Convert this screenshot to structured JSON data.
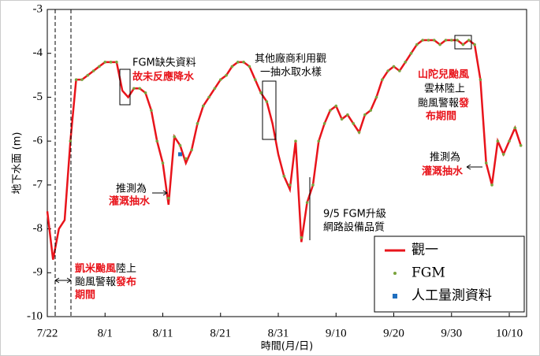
{
  "chart_data": {
    "type": "line",
    "x_label": "時間(月/日)",
    "y_label": "地下水面 (m)",
    "x": [
      "7/22",
      "7/23",
      "7/24",
      "7/25",
      "7/26",
      "7/27",
      "7/28",
      "7/29",
      "7/30",
      "7/31",
      "8/1",
      "8/2",
      "8/3",
      "8/4",
      "8/5",
      "8/6",
      "8/7",
      "8/8",
      "8/9",
      "8/10",
      "8/11",
      "8/12",
      "8/13",
      "8/14",
      "8/15",
      "8/16",
      "8/17",
      "8/18",
      "8/19",
      "8/20",
      "8/21",
      "8/22",
      "8/23",
      "8/24",
      "8/25",
      "8/26",
      "8/27",
      "8/28",
      "8/29",
      "8/30",
      "8/31",
      "9/1",
      "9/2",
      "9/3",
      "9/4",
      "9/5",
      "9/6",
      "9/7",
      "9/8",
      "9/9",
      "9/10",
      "9/11",
      "9/12",
      "9/13",
      "9/14",
      "9/15",
      "9/16",
      "9/17",
      "9/18",
      "9/19",
      "9/20",
      "9/21",
      "9/22",
      "9/23",
      "9/24",
      "9/25",
      "9/26",
      "9/27",
      "9/28",
      "9/29",
      "9/30",
      "10/1",
      "10/2",
      "10/3",
      "10/4",
      "10/5",
      "10/6",
      "10/7",
      "10/8",
      "10/9",
      "10/10",
      "10/11",
      "10/12"
    ],
    "series": [
      {
        "name": "觀一",
        "color": "#e8141b",
        "marker": "line",
        "values": [
          -7.6,
          -8.7,
          -8.0,
          -7.8,
          -6.0,
          -4.6,
          -4.6,
          -4.5,
          -4.4,
          -4.3,
          -4.2,
          -4.2,
          -4.2,
          -4.85,
          -5.0,
          -4.8,
          -4.8,
          -4.9,
          -5.3,
          -6.0,
          -6.5,
          -7.45,
          -5.9,
          -6.1,
          -6.5,
          -6.2,
          -5.6,
          -5.2,
          -5.0,
          -4.8,
          -4.6,
          -4.5,
          -4.3,
          -4.2,
          -4.2,
          -4.3,
          -4.6,
          -4.9,
          -5.1,
          -5.6,
          -6.3,
          -6.8,
          -7.1,
          -6.0,
          -8.3,
          -7.4,
          -7.0,
          -6.0,
          -5.6,
          -5.3,
          -5.2,
          -5.5,
          -5.4,
          -5.6,
          -5.8,
          -5.4,
          -5.3,
          -5.0,
          -4.6,
          -4.4,
          -4.3,
          -4.4,
          -4.2,
          -4.0,
          -3.8,
          -3.7,
          -3.7,
          -3.7,
          -3.8,
          -3.7,
          -3.7,
          -3.7,
          -3.8,
          -3.7,
          -3.8,
          -4.6,
          -6.5,
          -7.0,
          -6.0,
          -6.3,
          -6.0,
          -5.7,
          -6.1
        ]
      },
      {
        "name": "FGM",
        "color": "#7aa33c",
        "marker": "dot",
        "values": [
          null,
          null,
          null,
          null,
          -6.0,
          -4.6,
          -4.6,
          -4.5,
          -4.4,
          -4.3,
          -4.2,
          -4.2,
          -4.2,
          null,
          null,
          -4.8,
          -4.8,
          -4.9,
          -5.3,
          -6.0,
          -6.5,
          -7.3,
          -5.9,
          -6.1,
          -6.4,
          -6.2,
          -5.6,
          -5.2,
          -5.0,
          -4.8,
          -4.6,
          -4.5,
          -4.3,
          -4.2,
          -4.2,
          -4.3,
          -4.6,
          -4.9,
          -5.1,
          null,
          null,
          -6.8,
          -7.0,
          -6.0,
          -8.2,
          -7.4,
          -7.0,
          -6.0,
          -5.6,
          -5.3,
          -5.2,
          -5.5,
          -5.4,
          -5.6,
          -5.8,
          -5.4,
          -5.3,
          -5.0,
          -4.6,
          -4.4,
          -4.3,
          -4.4,
          -4.2,
          -4.0,
          -3.8,
          -3.7,
          -3.7,
          -3.7,
          -3.8,
          -3.7,
          -3.7,
          -3.7,
          -3.8,
          -3.7,
          -3.8,
          -4.6,
          -6.5,
          -7.0,
          -6.0,
          -6.3,
          -6.0,
          -5.7,
          -6.1
        ]
      },
      {
        "name": "人工量測資料",
        "color": "#1f6fbf",
        "marker": "square",
        "x": [
          "8/14"
        ],
        "values": [
          -6.3
        ]
      }
    ],
    "xlim": [
      "7/22",
      "10/13"
    ],
    "xticks": [
      "7/22",
      "8/1",
      "8/11",
      "8/21",
      "8/31",
      "9/10",
      "9/20",
      "9/30",
      "10/10"
    ],
    "ylim": [
      -10,
      -3
    ],
    "yticks": [
      -3,
      -4,
      -5,
      -6,
      -7,
      -8,
      -9,
      -10
    ],
    "legend": "bottom-right"
  },
  "annotations": [
    "FGM缺失資料",
    "故未反應降水",
    "其他廠商利用觀",
    "一抽水取水樣",
    "推測為",
    "灌溉抽水",
    "9/5 FGM升級",
    "網路設備品質",
    "凱米颱風",
    "陸上",
    "颱風警報",
    "發布",
    "期間",
    "山陀兒颱風",
    "雲林陸上",
    "颱風警報",
    "發",
    "布期間",
    "推測為",
    "灌溉抽水"
  ]
}
